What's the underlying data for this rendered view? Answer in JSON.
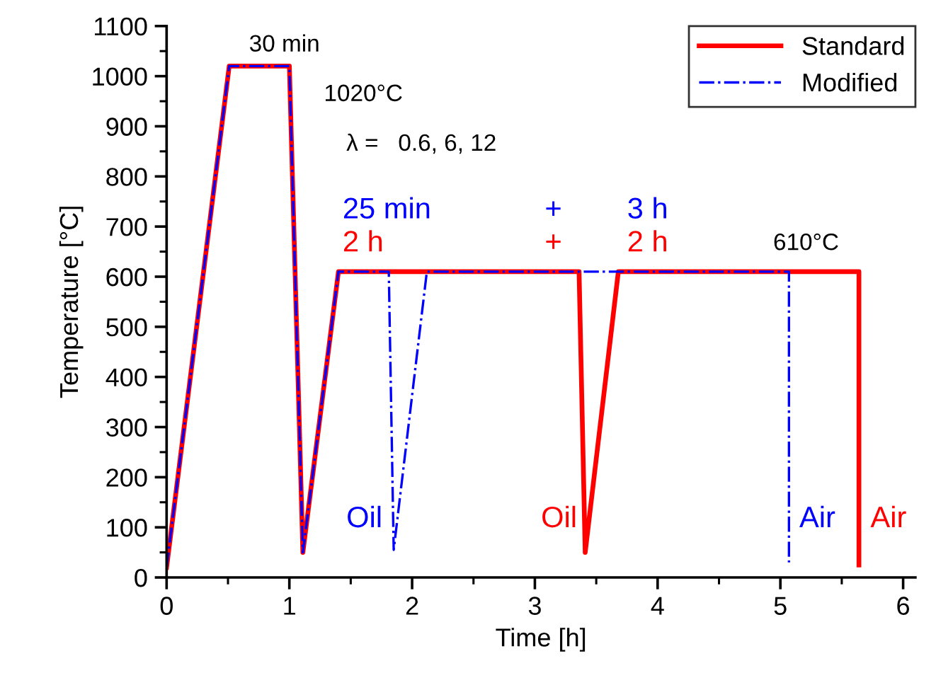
{
  "chart_data": {
    "type": "line",
    "xlabel": "Time [h]",
    "ylabel": "Temperature [°C]",
    "xlim": [
      0,
      6.1
    ],
    "xticks": [
      0,
      1,
      2,
      3,
      4,
      5,
      6
    ],
    "ylim": [
      0,
      1100
    ],
    "yticks": [
      0,
      100,
      200,
      300,
      400,
      500,
      600,
      700,
      800,
      900,
      1000,
      1100
    ],
    "grid": false,
    "legend": "top right",
    "marker": "none",
    "series": [
      {
        "name": "Standard",
        "color": "#ff0000",
        "line_style": "solid",
        "x": [
          0,
          0.51,
          1.0,
          1.11,
          1.4,
          3.36,
          3.41,
          3.68,
          5.64,
          5.64
        ],
        "values": [
          20,
          1020,
          1020,
          50,
          610,
          610,
          50,
          610,
          610,
          25
        ]
      },
      {
        "name": "Modified",
        "color": "#0000ff",
        "line_style": "dashdot",
        "x": [
          0,
          0.51,
          1.0,
          1.11,
          1.4,
          1.81,
          1.85,
          2.12,
          5.07,
          5.07
        ],
        "values": [
          20,
          1020,
          1020,
          50,
          610,
          610,
          55,
          610,
          610,
          30
        ]
      }
    ],
    "annotations": [
      "30 min",
      "1020°C",
      "λ =   0.6, 6, 12",
      "25 min",
      "+",
      "3 h",
      "2 h",
      "+",
      "2 h",
      "610°C",
      "Oil",
      "Oil",
      "Air",
      "Air"
    ]
  }
}
